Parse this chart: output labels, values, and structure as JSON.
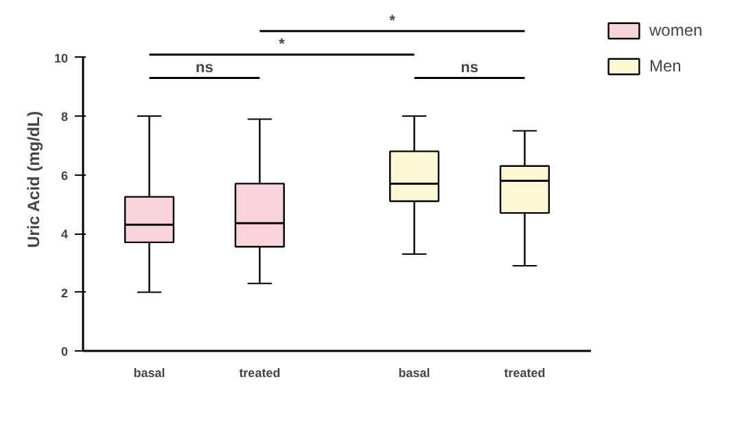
{
  "chart_data": {
    "type": "box",
    "ylabel": "Uric Acid (mg/dL)",
    "categories": [
      "basal",
      "treated",
      "basal",
      "treated"
    ],
    "series": [
      {
        "name": "women",
        "color": "#f9d5db",
        "boxes": [
          {
            "low": 2.0,
            "q1": 3.7,
            "median": 4.3,
            "q3": 5.25,
            "high": 8.0
          },
          {
            "low": 2.3,
            "q1": 3.55,
            "median": 4.35,
            "q3": 5.7,
            "high": 7.9
          },
          null,
          null
        ]
      },
      {
        "name": "Men",
        "color": "#fdf8d4",
        "boxes": [
          null,
          null,
          {
            "low": 3.3,
            "q1": 5.1,
            "median": 5.7,
            "q3": 6.8,
            "high": 8.0
          },
          {
            "low": 2.9,
            "q1": 4.7,
            "median": 5.8,
            "q3": 6.3,
            "high": 7.5
          }
        ]
      }
    ],
    "ylim": [
      0,
      10
    ],
    "yticks": [
      0,
      2,
      4,
      6,
      8,
      10
    ],
    "grid": false,
    "legend": "right",
    "annotations": [
      "ns",
      "ns",
      "*",
      "*"
    ]
  }
}
